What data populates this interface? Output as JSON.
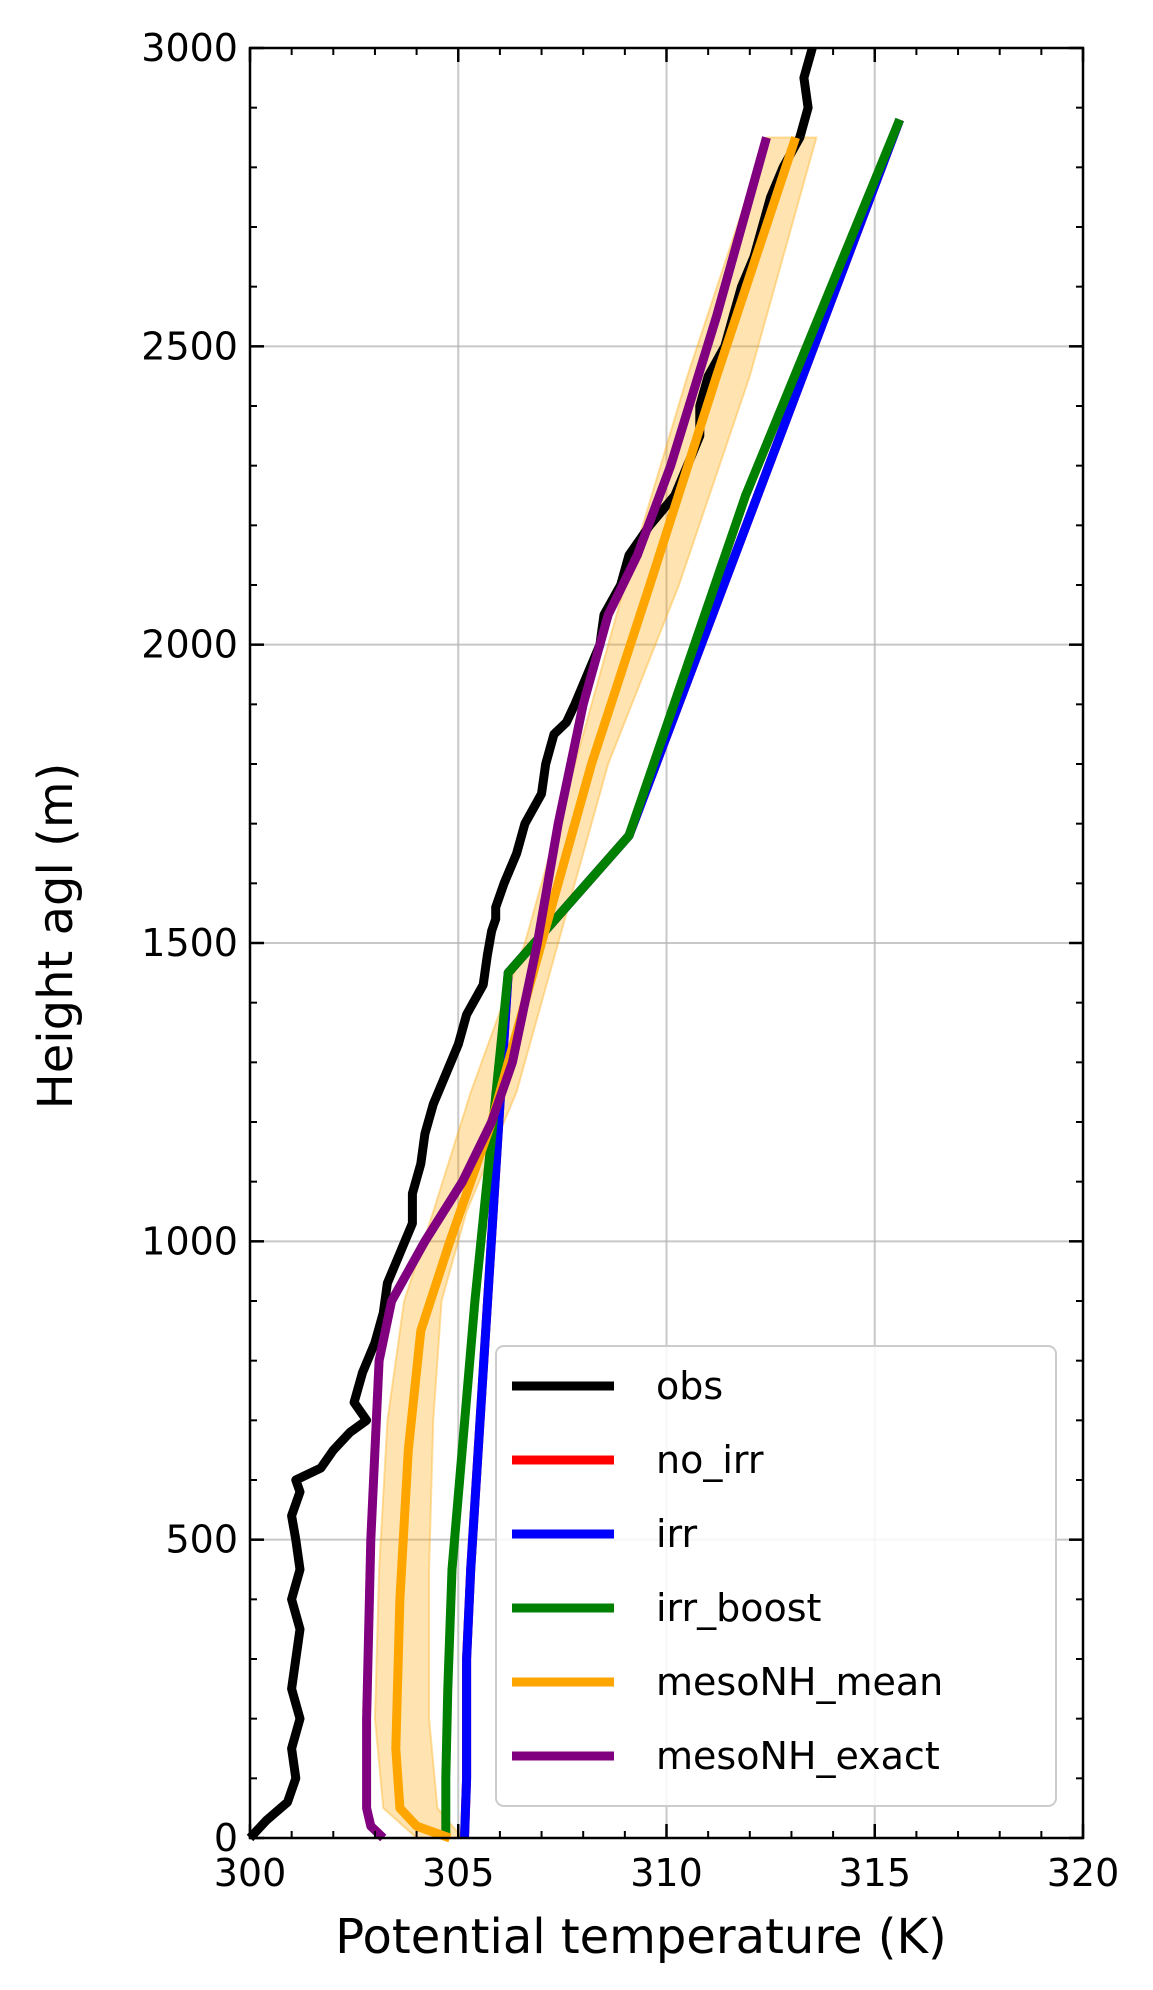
{
  "chart_data": {
    "type": "line",
    "xlabel": "Potential temperature (K)",
    "ylabel": "Height agl (m)",
    "xlim": [
      300,
      320
    ],
    "ylim": [
      0,
      3000
    ],
    "xticks": [
      300,
      305,
      310,
      315,
      320
    ],
    "yticks": [
      0,
      500,
      1000,
      1500,
      2000,
      2500,
      3000
    ],
    "grid": true,
    "legend_position": "lower-right",
    "series": [
      {
        "name": "obs",
        "color": "#000000",
        "x": [
          300.0,
          300.4,
          300.9,
          301.1,
          301.0,
          301.2,
          301.0,
          301.1,
          301.2,
          301.0,
          301.2,
          301.1,
          301.0,
          301.2,
          301.1,
          301.7,
          302.0,
          302.4,
          302.8,
          302.5,
          302.7,
          303.0,
          303.2,
          303.3,
          303.6,
          303.9,
          303.9,
          304.1,
          304.2,
          304.4,
          304.7,
          305.0,
          305.2,
          305.6,
          305.7,
          305.8,
          305.9,
          305.9,
          306.1,
          306.4,
          306.6,
          307.0,
          307.1,
          307.3,
          307.6,
          307.8,
          308.1,
          308.4,
          308.5,
          308.9,
          309.1,
          309.6,
          310.2,
          310.5,
          310.8,
          310.8,
          311.0,
          311.4,
          311.6,
          311.8,
          312.1,
          312.3,
          312.5,
          312.8,
          313.2,
          313.4,
          313.3,
          313.5
        ],
        "y": [
          0,
          30,
          60,
          100,
          150,
          200,
          250,
          300,
          350,
          400,
          450,
          500,
          540,
          580,
          600,
          620,
          650,
          680,
          700,
          730,
          780,
          830,
          880,
          930,
          980,
          1030,
          1080,
          1130,
          1180,
          1230,
          1280,
          1330,
          1380,
          1430,
          1480,
          1520,
          1540,
          1560,
          1600,
          1650,
          1700,
          1750,
          1800,
          1850,
          1870,
          1900,
          1950,
          2000,
          2050,
          2100,
          2150,
          2200,
          2250,
          2300,
          2350,
          2400,
          2450,
          2500,
          2550,
          2600,
          2650,
          2700,
          2750,
          2800,
          2850,
          2900,
          2950,
          3000
        ]
      },
      {
        "name": "no_irr",
        "color": "#ff0000",
        "x": [
          305.15,
          305.2,
          305.2,
          305.3,
          306.2,
          309.1,
          315.6
        ],
        "y": [
          0,
          100,
          300,
          450,
          1450,
          1680,
          2880
        ]
      },
      {
        "name": "irr",
        "color": "#0000ff",
        "x": [
          305.15,
          305.2,
          305.2,
          305.3,
          306.2,
          309.1,
          315.6
        ],
        "y": [
          0,
          100,
          300,
          450,
          1450,
          1680,
          2880
        ]
      },
      {
        "name": "irr_boost",
        "color": "#008000",
        "x": [
          304.7,
          304.7,
          304.75,
          304.85,
          305.4,
          306.2,
          309.1,
          311.9,
          315.6
        ],
        "y": [
          0,
          100,
          250,
          450,
          900,
          1450,
          1680,
          2250,
          2880
        ]
      },
      {
        "name": "mesoNH_mean",
        "color": "#ffa500",
        "x": [
          304.8,
          304.0,
          303.6,
          303.5,
          303.6,
          303.8,
          304.1,
          304.8,
          305.8,
          307.0,
          308.2,
          309.6,
          311.2,
          313.1
        ],
        "y": [
          0,
          20,
          50,
          150,
          400,
          650,
          850,
          1000,
          1200,
          1500,
          1800,
          2100,
          2450,
          2850
        ]
      },
      {
        "name": "mesoNH_exact",
        "color": "#800080",
        "x": [
          303.2,
          302.9,
          302.8,
          302.8,
          302.9,
          303.1,
          303.4,
          304.2,
          305.1,
          305.8,
          306.3,
          306.9,
          307.4,
          308.0,
          308.6,
          309.3,
          310.1,
          311.2,
          312.4
        ],
        "y": [
          0,
          20,
          50,
          200,
          500,
          800,
          900,
          1000,
          1100,
          1200,
          1300,
          1500,
          1700,
          1900,
          2050,
          2150,
          2300,
          2550,
          2850
        ]
      }
    ],
    "band": {
      "color": "#ffa500",
      "x_low": [
        304.0,
        303.2,
        303.0,
        303.1,
        303.3,
        303.7,
        304.4,
        305.3,
        306.6,
        307.8,
        309.0,
        310.5,
        312.4
      ],
      "x_high": [
        305.1,
        304.5,
        304.3,
        304.3,
        304.4,
        304.6,
        305.2,
        306.4,
        307.4,
        308.6,
        310.3,
        312.0,
        313.6
      ],
      "y": [
        0,
        50,
        200,
        450,
        700,
        900,
        1050,
        1250,
        1500,
        1800,
        2100,
        2450,
        2850
      ]
    }
  }
}
